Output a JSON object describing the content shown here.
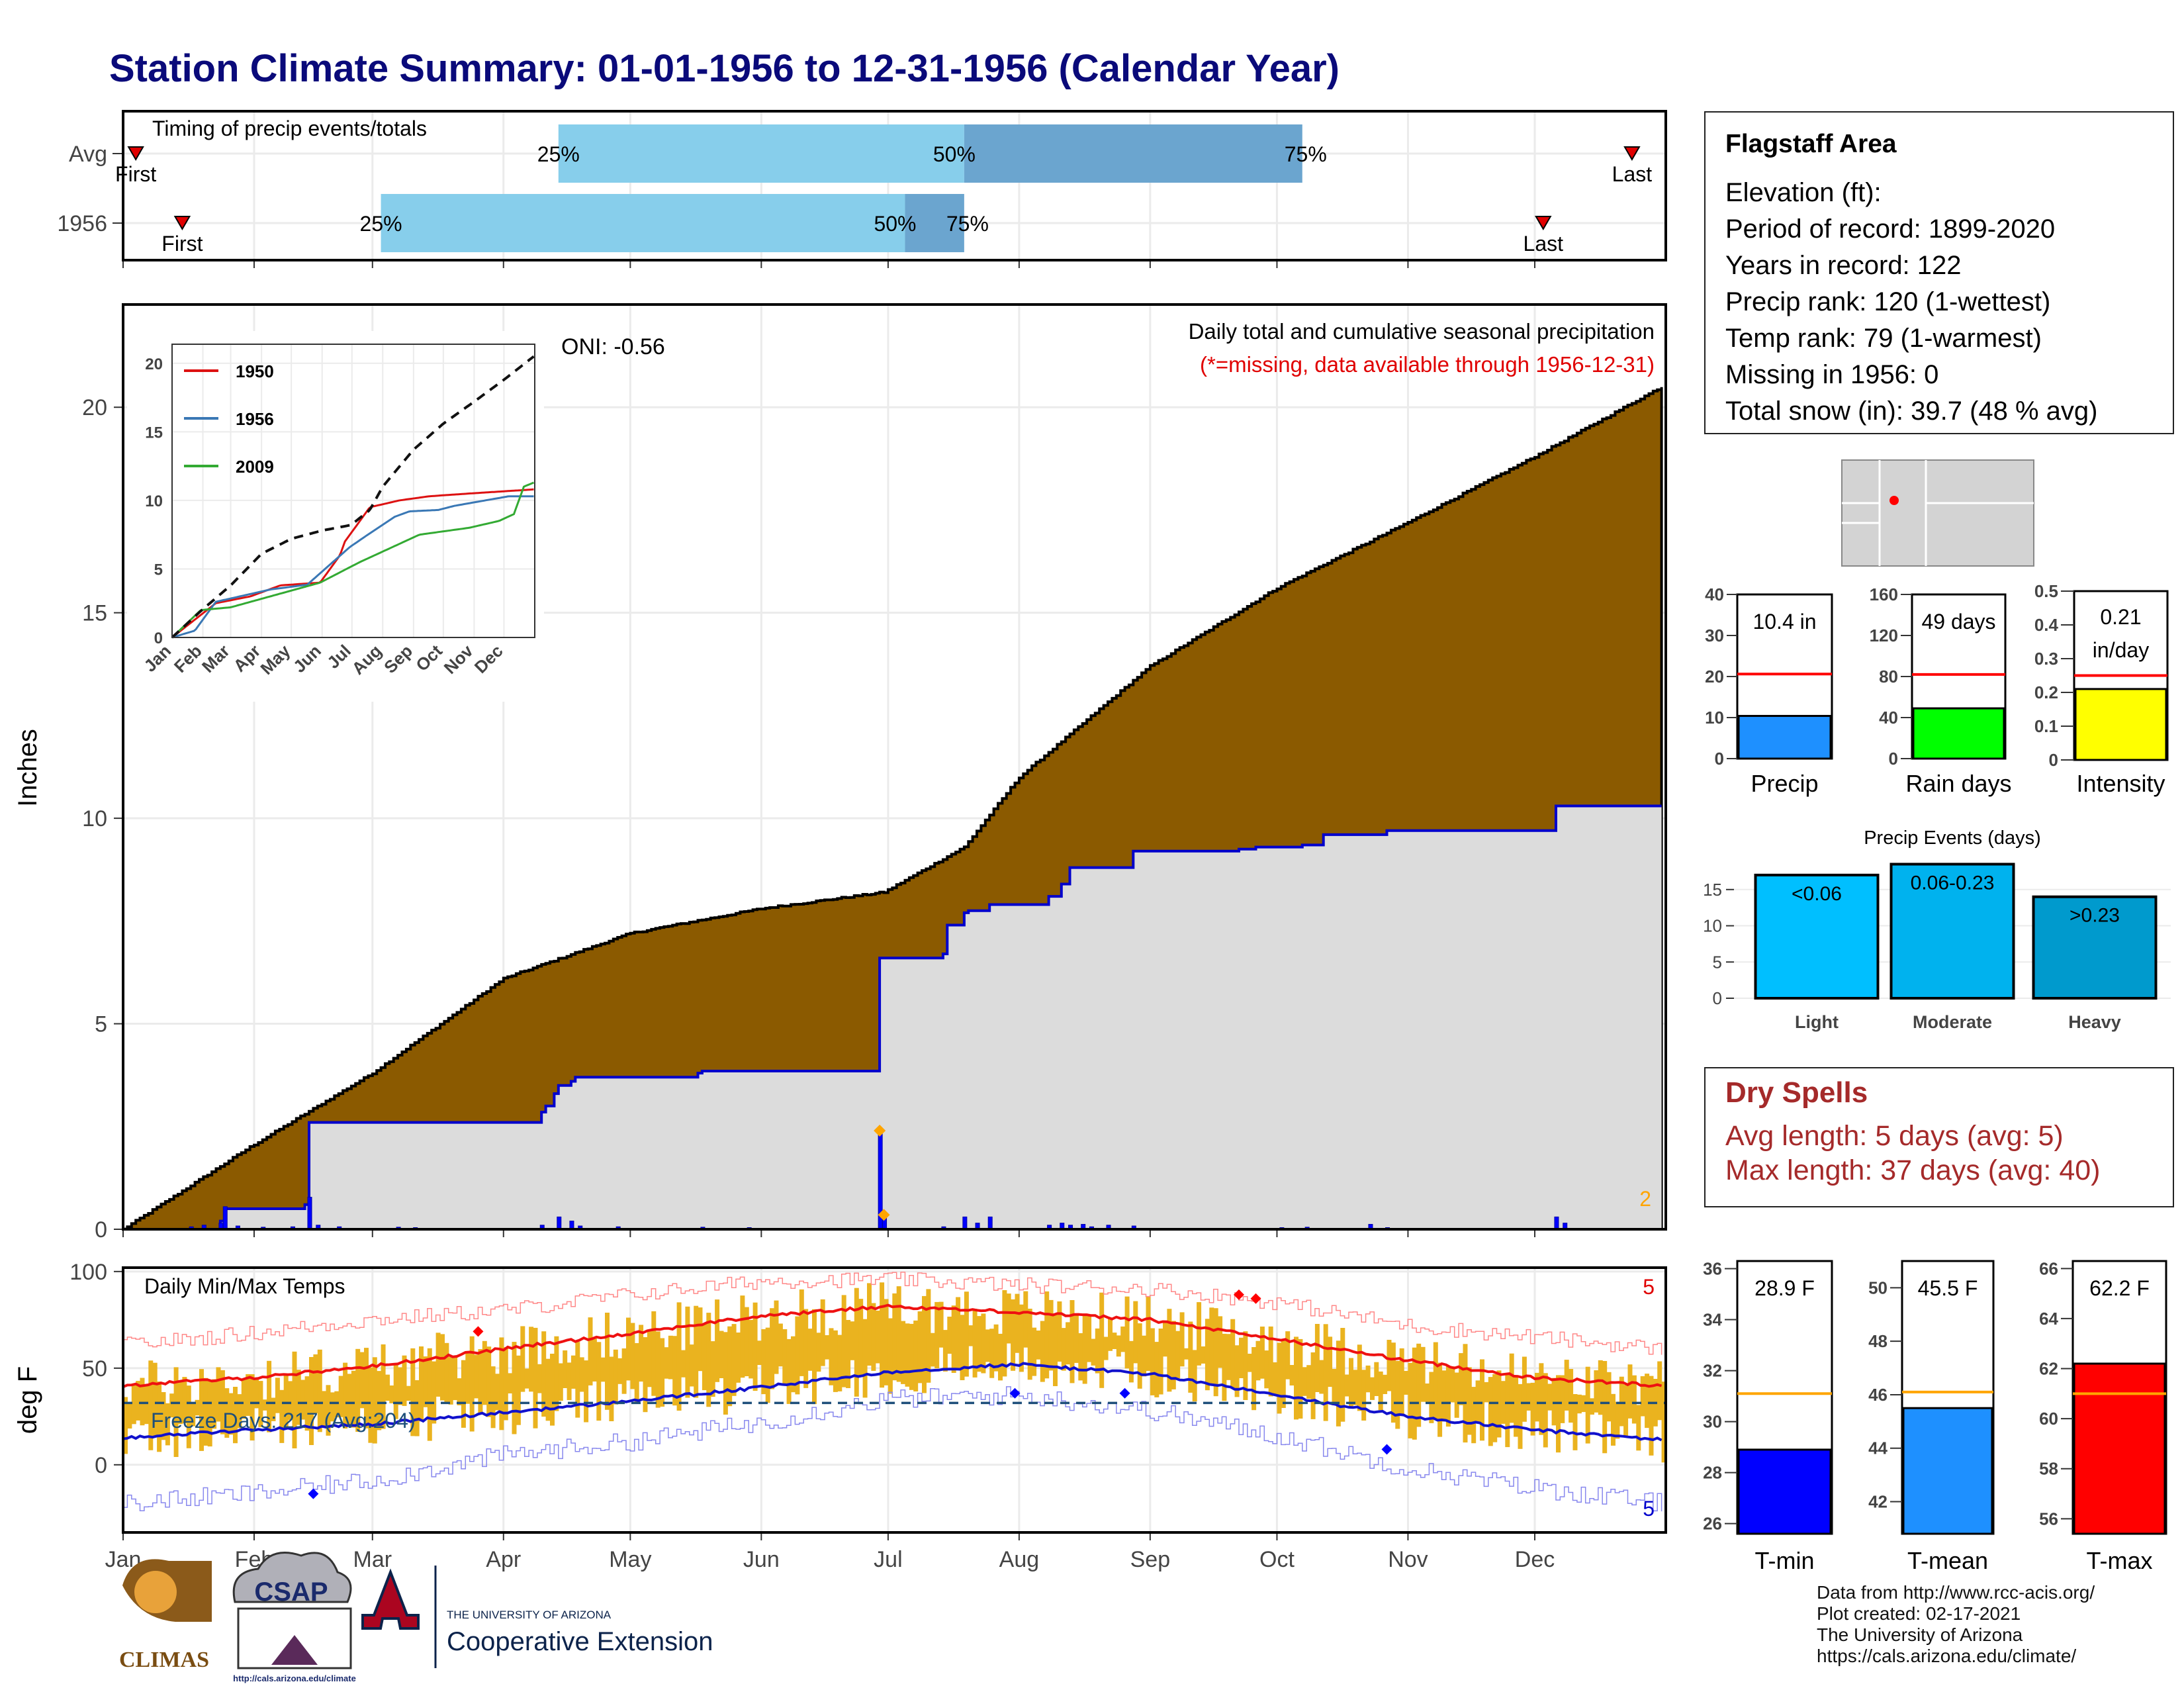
{
  "title": "Station Climate Summary: 01-01-1956 to 12-31-1956 (Calendar Year)",
  "station": {
    "name": "Flagstaff Area",
    "lines": [
      "Elevation (ft):",
      "Period of record: 1899-2020",
      "Years in record: 122",
      "Precip rank: 120 (1-wettest)",
      "Temp rank: 79 (1-warmest)",
      "Missing in 1956: 0",
      "Total snow (in): 39.7 (48 % avg)"
    ]
  },
  "months": [
    "Jan",
    "Feb",
    "Mar",
    "Apr",
    "May",
    "Jun",
    "Jul",
    "Aug",
    "Sep",
    "Oct",
    "Nov",
    "Dec"
  ],
  "timing": {
    "label": "Timing of precip events/totals",
    "rows": [
      {
        "label": "Avg",
        "first": 4,
        "p25": 104,
        "p50": 200,
        "p75": 280,
        "last": 358,
        "first_label": "First",
        "last_label": "Last",
        "p25_label": "25%",
        "p50_label": "50%",
        "p75_label": "75%"
      },
      {
        "label": "1956",
        "first": 15,
        "p25": 62,
        "p50": 186,
        "p75": 200,
        "last": 337,
        "first_label": "First",
        "last_label": "Last",
        "p25_label": "25%",
        "p50_label": "50%",
        "p75_label": "75%"
      }
    ],
    "colors": {
      "light": "#87ceeb",
      "dark": "#6ba5cf"
    }
  },
  "chart_data": [
    {
      "type": "area",
      "id": "cumulative-precip",
      "ylabel": "Inches",
      "ylim": [
        0,
        22.5
      ],
      "yticks": [
        0,
        5,
        10,
        15,
        20
      ],
      "annotation_title": "Daily total and cumulative seasonal precipitation",
      "annotation_missing": "(*=missing, data available through 1956-12-31)",
      "oni_label": "ONI: -0.56",
      "corner_value": "2",
      "average_cumulative": {
        "x": [
          1,
          31,
          60,
          91,
          121,
          152,
          181,
          200,
          213,
          244,
          274,
          305,
          335,
          365
        ],
        "y": [
          0,
          2.0,
          3.8,
          6.1,
          7.2,
          7.8,
          8.2,
          9.3,
          11.0,
          13.7,
          15.6,
          17.2,
          18.8,
          20.5
        ]
      },
      "year_cumulative": {
        "x": [
          1,
          24,
          25,
          44,
          45,
          100,
          101,
          103,
          104,
          107,
          108,
          137,
          138,
          179,
          180,
          181,
          195,
          196,
          200,
          201,
          206,
          220,
          223,
          225,
          240,
          265,
          269,
          280,
          285,
          300,
          340,
          365
        ],
        "y": [
          0,
          0.2,
          0.5,
          0.6,
          2.6,
          2.85,
          3.0,
          3.3,
          3.5,
          3.6,
          3.7,
          3.8,
          3.85,
          3.85,
          6.6,
          6.6,
          6.7,
          7.4,
          7.7,
          7.75,
          7.9,
          8.1,
          8.4,
          8.8,
          9.2,
          9.25,
          9.3,
          9.35,
          9.6,
          9.7,
          10.3,
          10.3
        ]
      },
      "daily_precip_events": [
        [
          17,
          0.06
        ],
        [
          20,
          0.1
        ],
        [
          24,
          0.15
        ],
        [
          25,
          0.55
        ],
        [
          28,
          0.08
        ],
        [
          34,
          0.05
        ],
        [
          41,
          0.06
        ],
        [
          45,
          0.78
        ],
        [
          47,
          0.1
        ],
        [
          52,
          0.06
        ],
        [
          66,
          0.05
        ],
        [
          70,
          0.04
        ],
        [
          100,
          0.1
        ],
        [
          104,
          0.3
        ],
        [
          107,
          0.2
        ],
        [
          109,
          0.08
        ],
        [
          118,
          0.06
        ],
        [
          138,
          0.05
        ],
        [
          149,
          0.04
        ],
        [
          180,
          2.4
        ],
        [
          181,
          0.35
        ],
        [
          195,
          0.06
        ],
        [
          200,
          0.3
        ],
        [
          203,
          0.15
        ],
        [
          206,
          0.3
        ],
        [
          220,
          0.1
        ],
        [
          223,
          0.15
        ],
        [
          225,
          0.1
        ],
        [
          228,
          0.12
        ],
        [
          230,
          0.06
        ],
        [
          234,
          0.1
        ],
        [
          240,
          0.08
        ],
        [
          275,
          0.04
        ],
        [
          281,
          0.05
        ],
        [
          296,
          0.12
        ],
        [
          300,
          0.04
        ],
        [
          340,
          0.3
        ],
        [
          342,
          0.15
        ]
      ],
      "flagged_points": [
        [
          180,
          2.4
        ],
        [
          181,
          0.35
        ]
      ],
      "colors": {
        "average_fill": "#8b5a00",
        "year_fill": "#dcdcdc",
        "year_line": "#0000cc",
        "daily_bar": "#0000ff"
      }
    },
    {
      "type": "line",
      "id": "inset-cumulative",
      "x_ticks": [
        "Jan",
        "Feb",
        "Mar",
        "Apr",
        "May",
        "Jun",
        "Jul",
        "Aug",
        "Sep",
        "Oct",
        "Nov",
        "Dec"
      ],
      "yticks": [
        0,
        5,
        10,
        15,
        20
      ],
      "ylim": [
        0,
        20
      ],
      "series": [
        {
          "name": "1950",
          "color": "#dd1111",
          "x": [
            1,
            45,
            80,
            110,
            150,
            160,
            165,
            170,
            175,
            200,
            230,
            260,
            300,
            365
          ],
          "y": [
            0,
            2.5,
            3.0,
            3.8,
            4.0,
            5.0,
            5.5,
            6.0,
            7.0,
            9.5,
            10.0,
            10.3,
            10.5,
            10.8
          ]
        },
        {
          "name": "1956",
          "color": "#3a78b5",
          "x": [
            1,
            24,
            45,
            100,
            137,
            180,
            196,
            225,
            240,
            269,
            285,
            340,
            365
          ],
          "y": [
            0,
            0.5,
            2.6,
            3.5,
            3.85,
            6.6,
            7.4,
            8.8,
            9.2,
            9.3,
            9.6,
            10.3,
            10.3
          ]
        },
        {
          "name": "2009",
          "color": "#33aa33",
          "x": [
            1,
            30,
            60,
            100,
            150,
            190,
            220,
            250,
            300,
            330,
            345,
            355,
            365
          ],
          "y": [
            0,
            2.0,
            2.2,
            3.0,
            4.0,
            5.5,
            6.5,
            7.5,
            8.0,
            8.5,
            9.0,
            11.0,
            11.3
          ]
        },
        {
          "name": "",
          "color": "#111111",
          "dashed": true,
          "x": [
            1,
            31,
            60,
            91,
            121,
            152,
            181,
            200,
            213,
            244,
            274,
            305,
            335,
            365
          ],
          "y": [
            0,
            2.0,
            3.8,
            6.1,
            7.2,
            7.8,
            8.2,
            9.3,
            11.0,
            13.7,
            15.6,
            17.2,
            18.8,
            20.5
          ]
        }
      ]
    },
    {
      "type": "bar",
      "id": "daily-temps",
      "ylabel": "deg F",
      "ylim": [
        -35,
        102
      ],
      "yticks": [
        0,
        50,
        100
      ],
      "label": "Daily Min/Max Temps",
      "freeze_label": "Freeze Days: 217 (Avg:204)",
      "freeze_line": 32,
      "corner_top": "5",
      "corner_bottom": "5",
      "avg_max": {
        "x": [
          1,
          31,
          60,
          91,
          121,
          152,
          182,
          213,
          244,
          274,
          305,
          335,
          365
        ],
        "y": [
          41,
          45,
          51,
          60,
          68,
          77,
          82,
          79,
          75,
          65,
          54,
          45,
          41
        ]
      },
      "avg_min": {
        "x": [
          1,
          31,
          60,
          91,
          121,
          152,
          182,
          213,
          244,
          274,
          305,
          335,
          365
        ],
        "y": [
          14,
          18,
          21,
          27,
          33,
          40,
          48,
          52,
          47,
          36,
          25,
          18,
          13
        ]
      },
      "record_max": {
        "x": [
          1,
          31,
          60,
          91,
          121,
          152,
          182,
          213,
          244,
          274,
          305,
          335,
          365
        ],
        "y": [
          62,
          68,
          75,
          80,
          88,
          95,
          96,
          93,
          91,
          84,
          72,
          66,
          60
        ]
      },
      "record_min": {
        "x": [
          1,
          31,
          60,
          91,
          121,
          152,
          182,
          213,
          244,
          274,
          305,
          335,
          365
        ],
        "y": [
          -20,
          -15,
          -8,
          5,
          12,
          22,
          34,
          36,
          28,
          15,
          -2,
          -12,
          -20
        ]
      },
      "markers_high": [
        [
          85,
          69
        ],
        [
          265,
          88
        ],
        [
          269,
          86
        ]
      ],
      "markers_low": [
        [
          46,
          -15
        ],
        [
          212,
          37
        ],
        [
          238,
          37
        ],
        [
          300,
          8
        ]
      ],
      "colors": {
        "bar": "#eab31f",
        "max_line": "#ee1111",
        "min_line": "#1111cc",
        "record_max": "#ff8888",
        "record_min": "#8888ee",
        "freeze": "#1e4f7a"
      }
    },
    {
      "type": "bar",
      "id": "precip-total",
      "categories": [
        "Precip"
      ],
      "values": [
        10.4
      ],
      "value_label": "10.4 in",
      "average": 20.6,
      "ylim": [
        0,
        40
      ],
      "yticks": [
        0,
        10,
        20,
        30,
        40
      ],
      "color": "#1e90ff"
    },
    {
      "type": "bar",
      "id": "rain-days",
      "categories": [
        "Rain days"
      ],
      "values": [
        49
      ],
      "value_label": "49 days",
      "average": 82,
      "ylim": [
        0,
        160
      ],
      "yticks": [
        0,
        40,
        80,
        120,
        160
      ],
      "color": "#00ff00"
    },
    {
      "type": "bar",
      "id": "intensity",
      "categories": [
        "Intensity"
      ],
      "values": [
        0.21
      ],
      "value_label_1": "0.21",
      "value_label_2": "in/day",
      "average": 0.25,
      "ylim": [
        0,
        0.5
      ],
      "yticks": [
        0.0,
        0.1,
        0.2,
        0.3,
        0.4,
        0.5
      ],
      "color": "#ffff00"
    },
    {
      "type": "bar",
      "id": "precip-events",
      "title": "Precip Events (days)",
      "categories": [
        "Light",
        "Moderate",
        "Heavy"
      ],
      "bar_labels": [
        "<0.06",
        "0.06-0.23",
        ">0.23"
      ],
      "values": [
        17,
        18.5,
        14
      ],
      "ylim": [
        0,
        19
      ],
      "yticks": [
        0,
        5,
        10,
        15
      ],
      "colors": [
        "#00bfff",
        "#00b2ee",
        "#009acd"
      ]
    },
    {
      "type": "bar",
      "id": "t-min",
      "categories": [
        "T-min"
      ],
      "values": [
        28.9
      ],
      "value_label": "28.9 F",
      "average": 31.1,
      "ylim": [
        25.6,
        36.3
      ],
      "yticks": [
        26,
        28,
        30,
        32,
        34,
        36
      ],
      "color": "#0000ff"
    },
    {
      "type": "bar",
      "id": "t-mean",
      "categories": [
        "T-mean"
      ],
      "values": [
        45.5
      ],
      "value_label": "45.5 F",
      "average": 46.1,
      "ylim": [
        40.8,
        51.0
      ],
      "yticks": [
        42,
        44,
        46,
        48,
        50
      ],
      "color": "#1e90ff"
    },
    {
      "type": "bar",
      "id": "t-max",
      "categories": [
        "T-max"
      ],
      "values": [
        62.2
      ],
      "value_label": "62.2 F",
      "average": 61.0,
      "ylim": [
        55.4,
        66.3
      ],
      "yticks": [
        56,
        58,
        60,
        62,
        64,
        66
      ],
      "color": "#ff0000"
    }
  ],
  "dry_spells": {
    "title": "Dry Spells",
    "avg_line": "Avg length: 5 days (avg: 5)",
    "max_line": "Max length: 37 days (avg: 40)"
  },
  "logos": {
    "climas": "CLIMAS",
    "csap": "CSAP",
    "csap_url": "http://cals.arizona.edu/climate",
    "ua_small": "THE UNIVERSITY OF ARIZONA",
    "ua_main": "Cooperative Extension"
  },
  "footer": [
    "Data from http://www.rcc-acis.org/",
    "Plot created: 02-17-2021",
    "The University of Arizona",
    "https://cals.arizona.edu/climate/"
  ]
}
